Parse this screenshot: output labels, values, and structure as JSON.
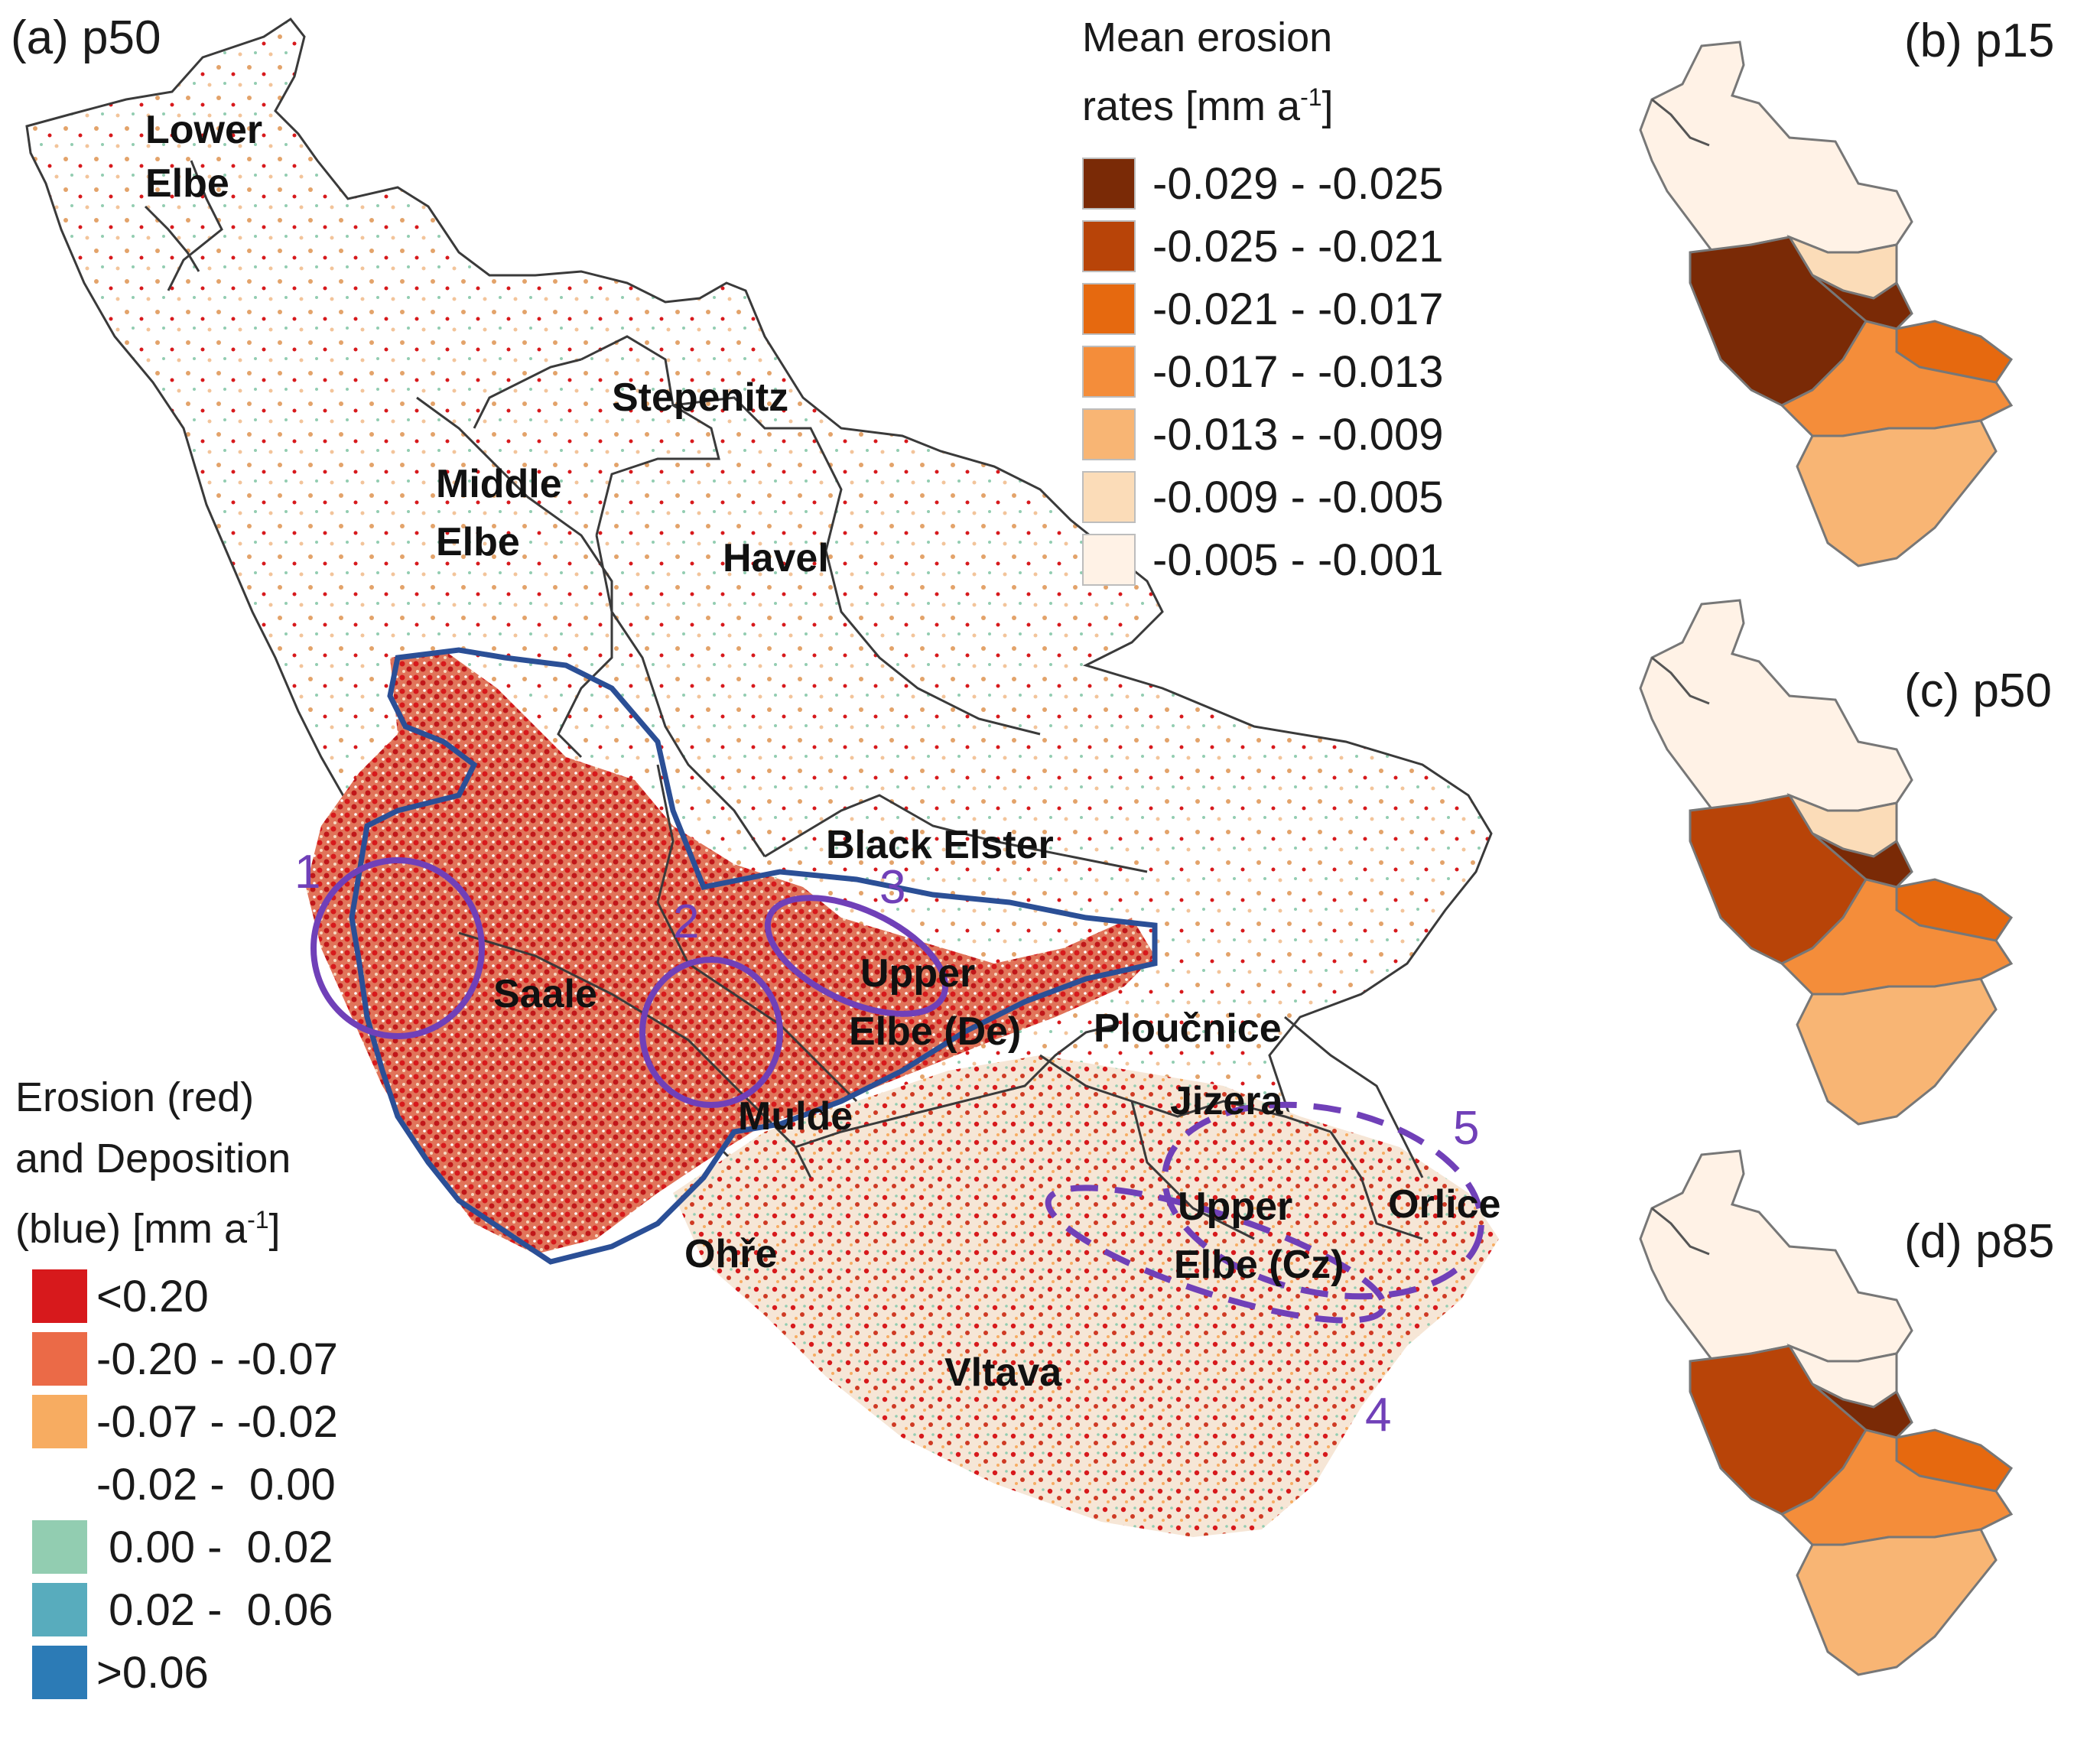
{
  "panels": {
    "a": "(a) p50",
    "b": "(b) p15",
    "c": "(c) p50",
    "d": "(d) p85"
  },
  "regions": {
    "lower_elbe": [
      "Lower",
      "Elbe"
    ],
    "stepenitz": "Stepenitz",
    "middle_elbe": [
      "Middle",
      "Elbe"
    ],
    "havel": "Havel",
    "black_elster": "Black Elster",
    "saale": "Saale",
    "upper_elbe_de": [
      "Upper",
      "Elbe (De)"
    ],
    "ploucnice": "Ploučnice",
    "mulde": "Mulde",
    "jizera": "Jizera",
    "orlice": "Orlice",
    "upper_elbe_cz": [
      "Upper",
      "Elbe (Cz)"
    ],
    "ohre": "Ohře",
    "vltava": "Vltava"
  },
  "hotspot_labels": [
    "1",
    "2",
    "3",
    "4",
    "5"
  ],
  "legend_mean": {
    "title_line1": "Mean erosion",
    "title_line2_prefix": "rates [mm a",
    "title_sup": "-1",
    "title_suffix": "]",
    "items": [
      {
        "label": "-0.029 - -0.025",
        "color": "#7a2a06"
      },
      {
        "label": "-0.025 - -0.021",
        "color": "#b84408"
      },
      {
        "label": "-0.021 - -0.017",
        "color": "#e6690f"
      },
      {
        "label": "-0.017 - -0.013",
        "color": "#f48d3a"
      },
      {
        "label": "-0.013 - -0.009",
        "color": "#f8b574"
      },
      {
        "label": "-0.009 - -0.005",
        "color": "#fbdcb8"
      },
      {
        "label": "-0.005 - -0.001",
        "color": "#fff2e6"
      }
    ]
  },
  "legend_ed": {
    "title_line1": "Erosion (red)",
    "title_line2": "and Deposition",
    "title_line3_prefix": "(blue) [mm a",
    "title_sup": "-1",
    "title_suffix": "]",
    "items": [
      {
        "label": "<0.20",
        "color": "#d7191c"
      },
      {
        "label": "-0.20 - -0.07",
        "color": "#eb6a47"
      },
      {
        "label": "-0.07 - -0.02",
        "color": "#f7ac61"
      },
      {
        "label": "-0.02 -  0.00",
        "color": "#ffffff"
      },
      {
        "label": " 0.00 -  0.02",
        "color": "#92cdb1"
      },
      {
        "label": " 0.02 -  0.06",
        "color": "#58acbd"
      },
      {
        "label": ">0.06",
        "color": "#2c7bb6"
      }
    ]
  },
  "colors": {
    "boundary": "#3a3a3a",
    "blue_outline": "#2b4f96",
    "purple": "#7040b8",
    "panel_fill": {
      "b": {
        "north": "#fff2e6",
        "havel_se": "#fbdcb8",
        "west": "#7a2a06",
        "black_elster": "#7a2a06",
        "east_small": "#e6690f",
        "south": "#f48d3a",
        "vltava": "#f8b574"
      },
      "c": {
        "north": "#fff2e6",
        "havel_se": "#fbdcb8",
        "west": "#b84408",
        "black_elster": "#7a2a06",
        "east_small": "#e6690f",
        "south": "#f48d3a",
        "vltava": "#f8b574"
      },
      "d": {
        "north": "#fff2e6",
        "havel_se": "#fff2e6",
        "west": "#b84408",
        "black_elster": "#7a2a06",
        "east_small": "#e6690f",
        "south": "#f48d3a",
        "vltava": "#f8b574"
      }
    }
  }
}
